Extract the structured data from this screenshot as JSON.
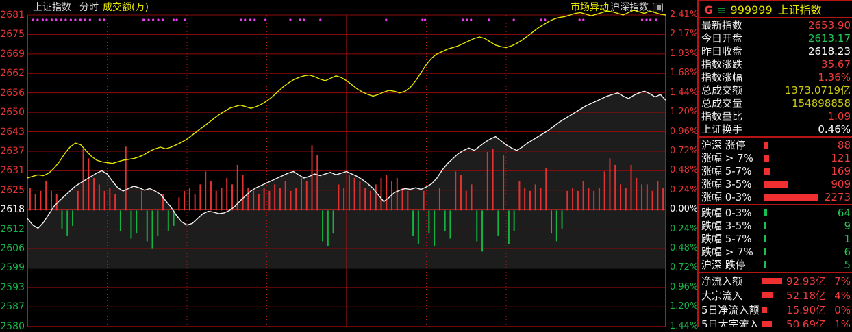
{
  "title_bar": {
    "index_name": "上证指数",
    "mode": "分时",
    "volume_label": "成交额(万)",
    "right_hot": "市场异动",
    "right_index": "沪深指数"
  },
  "panel": {
    "header": {
      "g": "G",
      "menu": "≡",
      "code": "999999",
      "name": "上证指数"
    },
    "quote_rows": [
      {
        "label": "最新指数",
        "value": "2653.90",
        "color": "red"
      },
      {
        "label": "今日开盘",
        "value": "2613.17",
        "color": "green"
      },
      {
        "label": "昨日收盘",
        "value": "2618.23",
        "color": "white"
      },
      {
        "label": "指数涨跌",
        "value": "35.67",
        "color": "red"
      },
      {
        "label": "指数涨幅",
        "value": "1.36%",
        "color": "red"
      },
      {
        "label": "总成交额",
        "value": "1373.0719亿",
        "color": "yellow"
      },
      {
        "label": "总成交量",
        "value": "154898858",
        "color": "yellow"
      },
      {
        "label": "指数量比",
        "value": "1.09",
        "color": "red"
      },
      {
        "label": "上证换手",
        "value": "0.46%",
        "color": "white"
      }
    ],
    "up_rows": [
      {
        "label": "沪深 涨停",
        "value": "88",
        "bar": 6
      },
      {
        "label": "涨幅 > 7%",
        "value": "121",
        "bar": 7
      },
      {
        "label": "涨幅 5-7%",
        "value": "169",
        "bar": 8
      },
      {
        "label": "涨幅 3-5%",
        "value": "909",
        "bar": 34
      },
      {
        "label": "涨幅 0-3%",
        "value": "2273",
        "bar": 78
      }
    ],
    "down_rows": [
      {
        "label": "跌幅 0-3%",
        "value": "64",
        "bar": 4
      },
      {
        "label": "跌幅 3-5%",
        "value": "9",
        "bar": 3
      },
      {
        "label": "跌幅 5-7%",
        "value": "1",
        "bar": 2
      },
      {
        "label": "跌幅 > 7%",
        "value": "6",
        "bar": 3
      },
      {
        "label": "沪深 跌停",
        "value": "5",
        "bar": 3
      }
    ],
    "flow_rows": [
      {
        "label": "净流入额",
        "value": "92.93亿",
        "pct": "7%",
        "bar": 30
      },
      {
        "label": "大宗流入",
        "value": "52.18亿",
        "pct": "4%",
        "bar": 16
      },
      {
        "label": "5日净流入额",
        "value": "15.90亿",
        "pct": "0%",
        "bar": 8
      },
      {
        "label": "5日大宗流入",
        "value": "50.69亿",
        "pct": "1%",
        "bar": 15
      }
    ]
  },
  "chart_data": {
    "type": "line",
    "title": "上证指数 分时 (intraday)",
    "x_axis": "09:30–15:00, 240 minutes, 8 half-hour segments",
    "prev_close": 2618.23,
    "latest": 2653.9,
    "open": 2613.17,
    "change": 35.67,
    "change_pct": 1.36,
    "y_left_labels": [
      "2681",
      "2675",
      "2669",
      "2662",
      "2656",
      "2650",
      "2643",
      "2637",
      "2631",
      "2625",
      "2618",
      "2612",
      "2606",
      "2599",
      "2593",
      "2587",
      "2580"
    ],
    "y_right_labels": [
      "2.41%",
      "2.17%",
      "1.93%",
      "1.68%",
      "1.44%",
      "1.20%",
      "0.96%",
      "0.72%",
      "0.48%",
      "0.24%",
      "0.00%",
      "0.24%",
      "0.48%",
      "0.72%",
      "0.96%",
      "1.20%",
      "1.44%"
    ],
    "grid_pct_step": 0.24,
    "ylim_pct": [
      -1.44,
      2.41
    ],
    "series": [
      {
        "name": "price_pct",
        "color": "#f2f2f2",
        "values": [
          -0.1,
          -0.18,
          -0.22,
          -0.15,
          -0.05,
          0.05,
          0.12,
          0.18,
          0.24,
          0.3,
          0.34,
          0.38,
          0.42,
          0.46,
          0.49,
          0.45,
          0.36,
          0.28,
          0.24,
          0.27,
          0.3,
          0.28,
          0.25,
          0.27,
          0.24,
          0.2,
          0.12,
          0.04,
          -0.06,
          -0.14,
          -0.18,
          -0.16,
          -0.1,
          -0.04,
          -0.01,
          -0.02,
          -0.04,
          -0.03,
          0.0,
          0.05,
          0.12,
          0.18,
          0.24,
          0.28,
          0.31,
          0.34,
          0.37,
          0.4,
          0.43,
          0.46,
          0.48,
          0.44,
          0.4,
          0.42,
          0.45,
          0.43,
          0.45,
          0.47,
          0.44,
          0.46,
          0.48,
          0.45,
          0.42,
          0.38,
          0.33,
          0.27,
          0.19,
          0.11,
          0.16,
          0.22,
          0.25,
          0.27,
          0.26,
          0.28,
          0.26,
          0.29,
          0.33,
          0.4,
          0.5,
          0.58,
          0.64,
          0.7,
          0.74,
          0.77,
          0.74,
          0.79,
          0.84,
          0.88,
          0.91,
          0.86,
          0.81,
          0.77,
          0.74,
          0.78,
          0.83,
          0.87,
          0.91,
          0.95,
          0.99,
          1.04,
          1.09,
          1.13,
          1.17,
          1.21,
          1.25,
          1.29,
          1.32,
          1.35,
          1.38,
          1.41,
          1.43,
          1.45,
          1.41,
          1.38,
          1.42,
          1.45,
          1.47,
          1.44,
          1.4,
          1.43,
          1.36
        ]
      },
      {
        "name": "leading_pct",
        "color": "#e6e600",
        "values": [
          0.4,
          0.42,
          0.44,
          0.43,
          0.46,
          0.52,
          0.6,
          0.7,
          0.78,
          0.83,
          0.81,
          0.74,
          0.67,
          0.62,
          0.6,
          0.59,
          0.58,
          0.6,
          0.62,
          0.63,
          0.64,
          0.66,
          0.69,
          0.73,
          0.76,
          0.78,
          0.76,
          0.78,
          0.81,
          0.84,
          0.88,
          0.93,
          0.98,
          1.03,
          1.08,
          1.13,
          1.18,
          1.22,
          1.26,
          1.28,
          1.3,
          1.28,
          1.26,
          1.28,
          1.31,
          1.35,
          1.4,
          1.46,
          1.52,
          1.57,
          1.61,
          1.64,
          1.66,
          1.67,
          1.65,
          1.62,
          1.6,
          1.63,
          1.66,
          1.64,
          1.6,
          1.55,
          1.5,
          1.46,
          1.43,
          1.41,
          1.43,
          1.46,
          1.48,
          1.47,
          1.45,
          1.47,
          1.52,
          1.6,
          1.7,
          1.8,
          1.88,
          1.93,
          1.96,
          1.99,
          2.01,
          2.03,
          2.06,
          2.09,
          2.12,
          2.14,
          2.12,
          2.08,
          2.04,
          2.02,
          2.01,
          2.03,
          2.06,
          2.1,
          2.15,
          2.2,
          2.25,
          2.29,
          2.33,
          2.36,
          2.38,
          2.39,
          2.41,
          2.43,
          2.44,
          2.42,
          2.4,
          2.42,
          2.44,
          2.46,
          2.45,
          2.43,
          2.41,
          2.44,
          2.47,
          2.45,
          2.43,
          2.46,
          2.44,
          2.42,
          2.41
        ]
      }
    ],
    "volume_signed": [
      0.35,
      0.25,
      0.3,
      0.45,
      0.3,
      0.25,
      -0.35,
      -0.5,
      -0.3,
      0.3,
      0.95,
      0.8,
      0.5,
      0.4,
      0.3,
      0.35,
      0.25,
      -0.4,
      0.98,
      -0.55,
      -0.45,
      0.3,
      -0.6,
      -0.75,
      -0.5,
      0.25,
      -0.4,
      -0.3,
      0.2,
      0.3,
      0.35,
      0.25,
      0.4,
      0.6,
      0.45,
      0.3,
      0.35,
      0.5,
      0.4,
      0.7,
      0.55,
      0.35,
      0.3,
      0.25,
      0.35,
      0.3,
      0.4,
      0.35,
      0.45,
      0.3,
      0.35,
      0.5,
      0.45,
      1.0,
      0.85,
      -0.6,
      -0.7,
      -0.45,
      0.4,
      0.35,
      0.55,
      0.5,
      0.45,
      0.35,
      0.3,
      0.4,
      0.5,
      0.55,
      0.45,
      0.5,
      0.35,
      0.3,
      -0.5,
      -0.65,
      0.3,
      -0.45,
      -0.7,
      0.35,
      -0.4,
      -0.55,
      0.6,
      0.55,
      0.3,
      0.4,
      -0.6,
      -0.8,
      0.9,
      0.95,
      -0.5,
      0.85,
      -0.65,
      -0.4,
      0.45,
      0.35,
      0.3,
      0.4,
      0.35,
      0.65,
      -0.45,
      -0.6,
      -0.35,
      0.3,
      0.35,
      0.3,
      0.45,
      0.35,
      0.3,
      0.35,
      0.6,
      0.8,
      0.7,
      0.4,
      0.35,
      0.7,
      0.5,
      0.4,
      0.4,
      0.3,
      0.45,
      0.35
    ],
    "event_dots_x": [
      0.009,
      0.016,
      0.024,
      0.03,
      0.038,
      0.045,
      0.053,
      0.06,
      0.068,
      0.075,
      0.083,
      0.09,
      0.098,
      0.113,
      0.12,
      0.182,
      0.19,
      0.197,
      0.205,
      0.212,
      0.229,
      0.234,
      0.247,
      0.335,
      0.341,
      0.349,
      0.356,
      0.373,
      0.412,
      0.427,
      0.433,
      0.459,
      0.562,
      0.619,
      0.623,
      0.682,
      0.689,
      0.695,
      0.723,
      0.762,
      0.805,
      0.811,
      0.865,
      0.871,
      0.963,
      0.97,
      0.976,
      0.985
    ]
  },
  "colors": {
    "up": "#f03c3c",
    "down": "#22c855",
    "flat": "#ffffff",
    "amount": "#c9c913",
    "grid": "#8e0b0b",
    "border": "#c01414",
    "price_line": "#f2f2f2",
    "leading_line": "#e6e600",
    "fill": "#1d1d1d",
    "vol_up": "#e13232",
    "vol_down": "#12b341",
    "event_dot": "#f03cf0"
  }
}
